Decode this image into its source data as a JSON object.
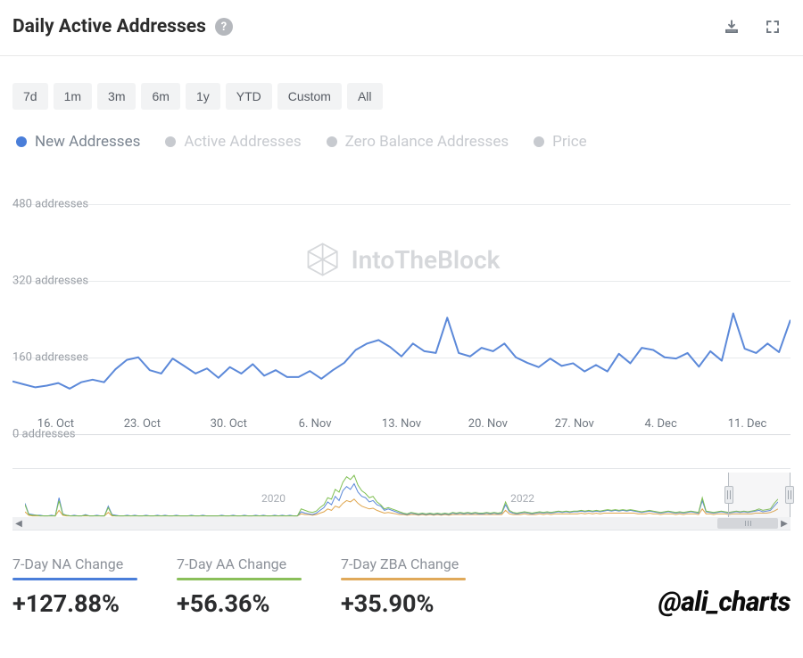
{
  "header": {
    "title": "Daily Active Addresses",
    "help_glyph": "?"
  },
  "ranges": [
    "7d",
    "1m",
    "3m",
    "6m",
    "1y",
    "YTD",
    "Custom",
    "All"
  ],
  "legend": [
    {
      "label": "New Addresses",
      "color": "#4a7ed9",
      "label_color": "#7a8490",
      "active": true
    },
    {
      "label": "Active Addresses",
      "color": "#c7cacf",
      "label_color": "#c7cacf",
      "active": false
    },
    {
      "label": "Zero Balance Addresses",
      "color": "#c7cacf",
      "label_color": "#c7cacf",
      "active": false
    },
    {
      "label": "Price",
      "color": "#c7cacf",
      "label_color": "#c7cacf",
      "active": false
    }
  ],
  "chart": {
    "type": "line",
    "line_color": "#5c89d9",
    "line_width": 2,
    "background": "#ffffff",
    "grid_color": "#e8eaec",
    "y": {
      "unit": "addresses",
      "ticks": [
        0,
        160,
        320,
        480
      ],
      "min": 0,
      "max": 520
    },
    "x_labels": [
      "16. Oct",
      "23. Oct",
      "30. Oct",
      "6. Nov",
      "13. Nov",
      "20. Nov",
      "27. Nov",
      "4. Dec",
      "11. Dec"
    ],
    "series": [
      62,
      55,
      48,
      52,
      58,
      45,
      60,
      66,
      60,
      90,
      112,
      118,
      88,
      80,
      115,
      98,
      80,
      92,
      70,
      95,
      80,
      102,
      75,
      88,
      72,
      72,
      86,
      68,
      88,
      105,
      135,
      150,
      158,
      142,
      120,
      150,
      132,
      128,
      210,
      128,
      120,
      140,
      132,
      150,
      118,
      105,
      95,
      115,
      98,
      104,
      85,
      100,
      85,
      126,
      104,
      140,
      135,
      118,
      115,
      128,
      96,
      132,
      110,
      220,
      138,
      128,
      150,
      130,
      205
    ],
    "watermark": "IntoTheBlock"
  },
  "navigator": {
    "years": [
      "2020",
      "2022"
    ],
    "series_blue_color": "#5c89d9",
    "series_green_color": "#7fbf52",
    "series_orange_color": "#dfa54c",
    "data_len": 200,
    "selection": {
      "start_pct": 92,
      "end_pct": 100
    },
    "blue": [
      20,
      5,
      4,
      3,
      3,
      2,
      2,
      3,
      2,
      28,
      5,
      3,
      2,
      3,
      2,
      2,
      4,
      2,
      2,
      3,
      2,
      2,
      16,
      4,
      3,
      2,
      2,
      3,
      2,
      3,
      2,
      2,
      3,
      2,
      2,
      3,
      2,
      3,
      2,
      2,
      3,
      2,
      2,
      2,
      3,
      2,
      2,
      3,
      2,
      2,
      2,
      2,
      3,
      2,
      2,
      3,
      2,
      2,
      3,
      2,
      2,
      3,
      2,
      3,
      2,
      2,
      3,
      2,
      3,
      2,
      3,
      2,
      2,
      8,
      6,
      5,
      4,
      6,
      10,
      14,
      22,
      18,
      30,
      24,
      38,
      44,
      40,
      48,
      36,
      30,
      28,
      22,
      24,
      18,
      16,
      10,
      12,
      10,
      8,
      6,
      5,
      4,
      6,
      5,
      4,
      5,
      4,
      5,
      4,
      5,
      4,
      5,
      4,
      6,
      5,
      6,
      5,
      6,
      5,
      6,
      5,
      5,
      6,
      5,
      6,
      5,
      6,
      18,
      8,
      6,
      5,
      6,
      7,
      6,
      5,
      6,
      7,
      6,
      7,
      6,
      7,
      8,
      7,
      8,
      7,
      8,
      8,
      9,
      8,
      9,
      8,
      9,
      8,
      9,
      10,
      9,
      10,
      9,
      10,
      9,
      10,
      9,
      8,
      7,
      8,
      9,
      8,
      7,
      6,
      7,
      8,
      7,
      6,
      7,
      6,
      7,
      8,
      7,
      6,
      24,
      8,
      7,
      6,
      7,
      8,
      7,
      6,
      7,
      8,
      7,
      8,
      7,
      8,
      9,
      10,
      8,
      9,
      10,
      16,
      22
    ],
    "green": [
      18,
      4,
      3,
      3,
      2,
      2,
      2,
      2,
      2,
      24,
      4,
      3,
      2,
      2,
      2,
      2,
      3,
      2,
      2,
      2,
      2,
      2,
      14,
      3,
      2,
      2,
      2,
      2,
      2,
      2,
      2,
      2,
      2,
      2,
      2,
      2,
      2,
      2,
      2,
      2,
      2,
      2,
      2,
      2,
      2,
      2,
      2,
      2,
      2,
      2,
      2,
      2,
      2,
      2,
      2,
      2,
      2,
      2,
      2,
      2,
      2,
      2,
      2,
      2,
      2,
      2,
      2,
      2,
      2,
      2,
      2,
      2,
      2,
      12,
      10,
      8,
      7,
      9,
      14,
      18,
      28,
      26,
      40,
      36,
      50,
      58,
      54,
      60,
      46,
      38,
      34,
      28,
      30,
      22,
      18,
      12,
      14,
      12,
      10,
      8,
      6,
      5,
      7,
      6,
      5,
      6,
      5,
      6,
      5,
      6,
      5,
      6,
      5,
      7,
      6,
      7,
      6,
      7,
      6,
      7,
      6,
      6,
      7,
      6,
      7,
      6,
      7,
      22,
      10,
      7,
      6,
      7,
      8,
      7,
      6,
      7,
      8,
      7,
      8,
      7,
      8,
      9,
      8,
      9,
      8,
      9,
      9,
      10,
      9,
      10,
      9,
      10,
      9,
      10,
      11,
      10,
      11,
      10,
      11,
      10,
      11,
      10,
      9,
      8,
      9,
      10,
      9,
      8,
      7,
      8,
      9,
      8,
      7,
      8,
      7,
      8,
      9,
      8,
      7,
      28,
      9,
      8,
      7,
      8,
      9,
      8,
      7,
      8,
      9,
      8,
      9,
      8,
      9,
      10,
      12,
      10,
      11,
      12,
      20,
      26
    ],
    "orange": [
      8,
      3,
      2,
      2,
      2,
      2,
      2,
      2,
      2,
      10,
      3,
      2,
      2,
      2,
      2,
      2,
      2,
      2,
      2,
      2,
      2,
      2,
      7,
      2,
      2,
      2,
      2,
      2,
      2,
      2,
      2,
      2,
      2,
      2,
      2,
      2,
      2,
      2,
      2,
      2,
      2,
      2,
      2,
      2,
      2,
      2,
      2,
      2,
      2,
      2,
      2,
      2,
      2,
      2,
      2,
      2,
      2,
      2,
      2,
      2,
      2,
      2,
      2,
      2,
      2,
      2,
      2,
      2,
      2,
      2,
      2,
      2,
      2,
      5,
      4,
      4,
      3,
      4,
      6,
      8,
      12,
      10,
      16,
      14,
      20,
      24,
      22,
      26,
      20,
      16,
      14,
      12,
      13,
      10,
      8,
      6,
      7,
      6,
      5,
      4,
      4,
      3,
      4,
      4,
      3,
      4,
      3,
      4,
      3,
      4,
      3,
      4,
      3,
      4,
      4,
      4,
      4,
      4,
      4,
      4,
      4,
      4,
      4,
      4,
      4,
      4,
      4,
      10,
      5,
      4,
      4,
      4,
      5,
      4,
      4,
      4,
      5,
      4,
      5,
      4,
      5,
      5,
      5,
      5,
      5,
      5,
      5,
      6,
      5,
      6,
      5,
      6,
      5,
      6,
      6,
      6,
      6,
      6,
      6,
      6,
      6,
      6,
      5,
      5,
      5,
      6,
      5,
      5,
      4,
      5,
      5,
      5,
      4,
      5,
      4,
      5,
      5,
      5,
      4,
      12,
      5,
      5,
      4,
      5,
      5,
      5,
      4,
      5,
      5,
      5,
      5,
      5,
      5,
      6,
      6,
      6,
      6,
      7,
      9,
      12
    ]
  },
  "stats": [
    {
      "title": "7-Day NA Change",
      "value": "+127.88%",
      "rule_color": "#4a7ed9"
    },
    {
      "title": "7-Day AA Change",
      "value": "+56.36%",
      "rule_color": "#8abf5a"
    },
    {
      "title": "7-Day ZBA Change",
      "value": "+35.90%",
      "rule_color": "#e0a95a"
    }
  ],
  "handle": "@ali_charts"
}
